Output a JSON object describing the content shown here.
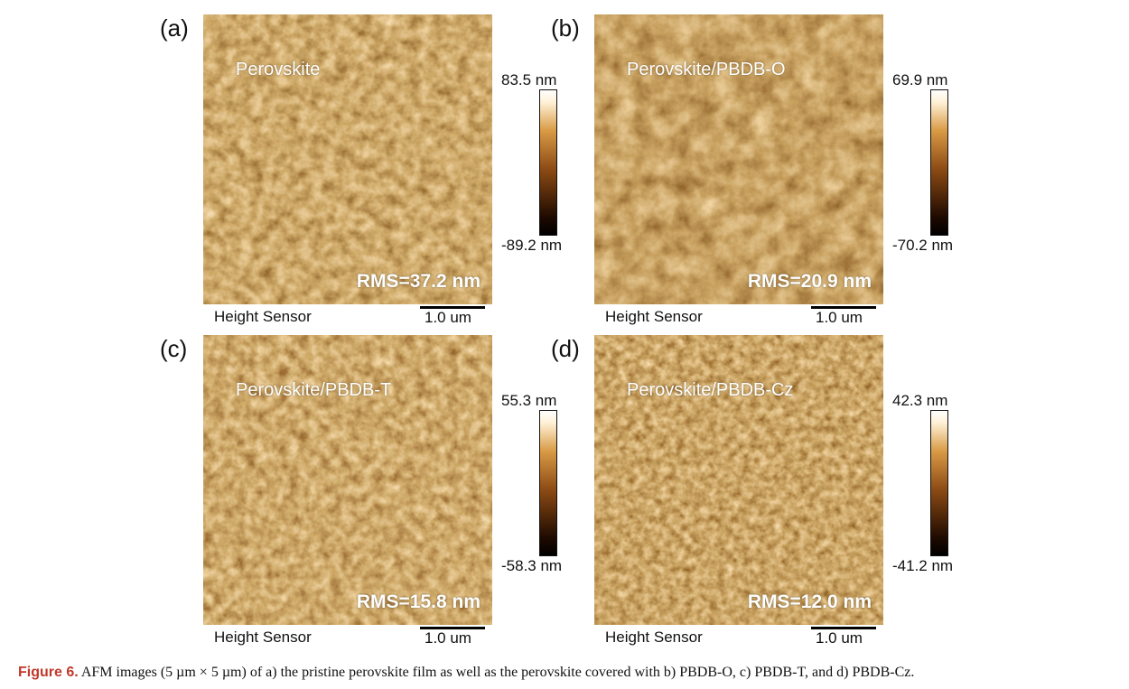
{
  "panels": [
    {
      "letter": "(a)",
      "title": "Perovskite",
      "rms": "RMS=37.2 nm",
      "colorbar_max": "83.5 nm",
      "colorbar_min": "-89.2 nm",
      "footer_label": "Height Sensor",
      "scalebar_label": "1.0 um"
    },
    {
      "letter": "(b)",
      "title": "Perovskite/PBDB-O",
      "rms": "RMS=20.9 nm",
      "colorbar_max": "69.9 nm",
      "colorbar_min": "-70.2 nm",
      "footer_label": "Height Sensor",
      "scalebar_label": "1.0 um"
    },
    {
      "letter": "(c)",
      "title": "Perovskite/PBDB-T",
      "rms": "RMS=15.8 nm",
      "colorbar_max": "55.3 nm",
      "colorbar_min": "-58.3 nm",
      "footer_label": "Height Sensor",
      "scalebar_label": "1.0 um"
    },
    {
      "letter": "(d)",
      "title": "Perovskite/PBDB-Cz",
      "rms": "RMS=12.0 nm",
      "colorbar_max": "42.3 nm",
      "colorbar_min": "-41.2 nm",
      "footer_label": "Height Sensor",
      "scalebar_label": "1.0 um"
    }
  ],
  "caption": {
    "label": "Figure 6.",
    "text": "AFM images (5 µm × 5 µm) of a) the pristine perovskite film as well as the perovskite covered with b) PBDB-O, c) PBDB-T, and d) PBDB-Cz."
  },
  "colors": {
    "afm_dark": "#1e0a00",
    "afm_mid": "#8b4a14",
    "afm_light": "#d99a45",
    "afm_highlight": "#fff2d8",
    "figure_label": "#c0392b"
  }
}
